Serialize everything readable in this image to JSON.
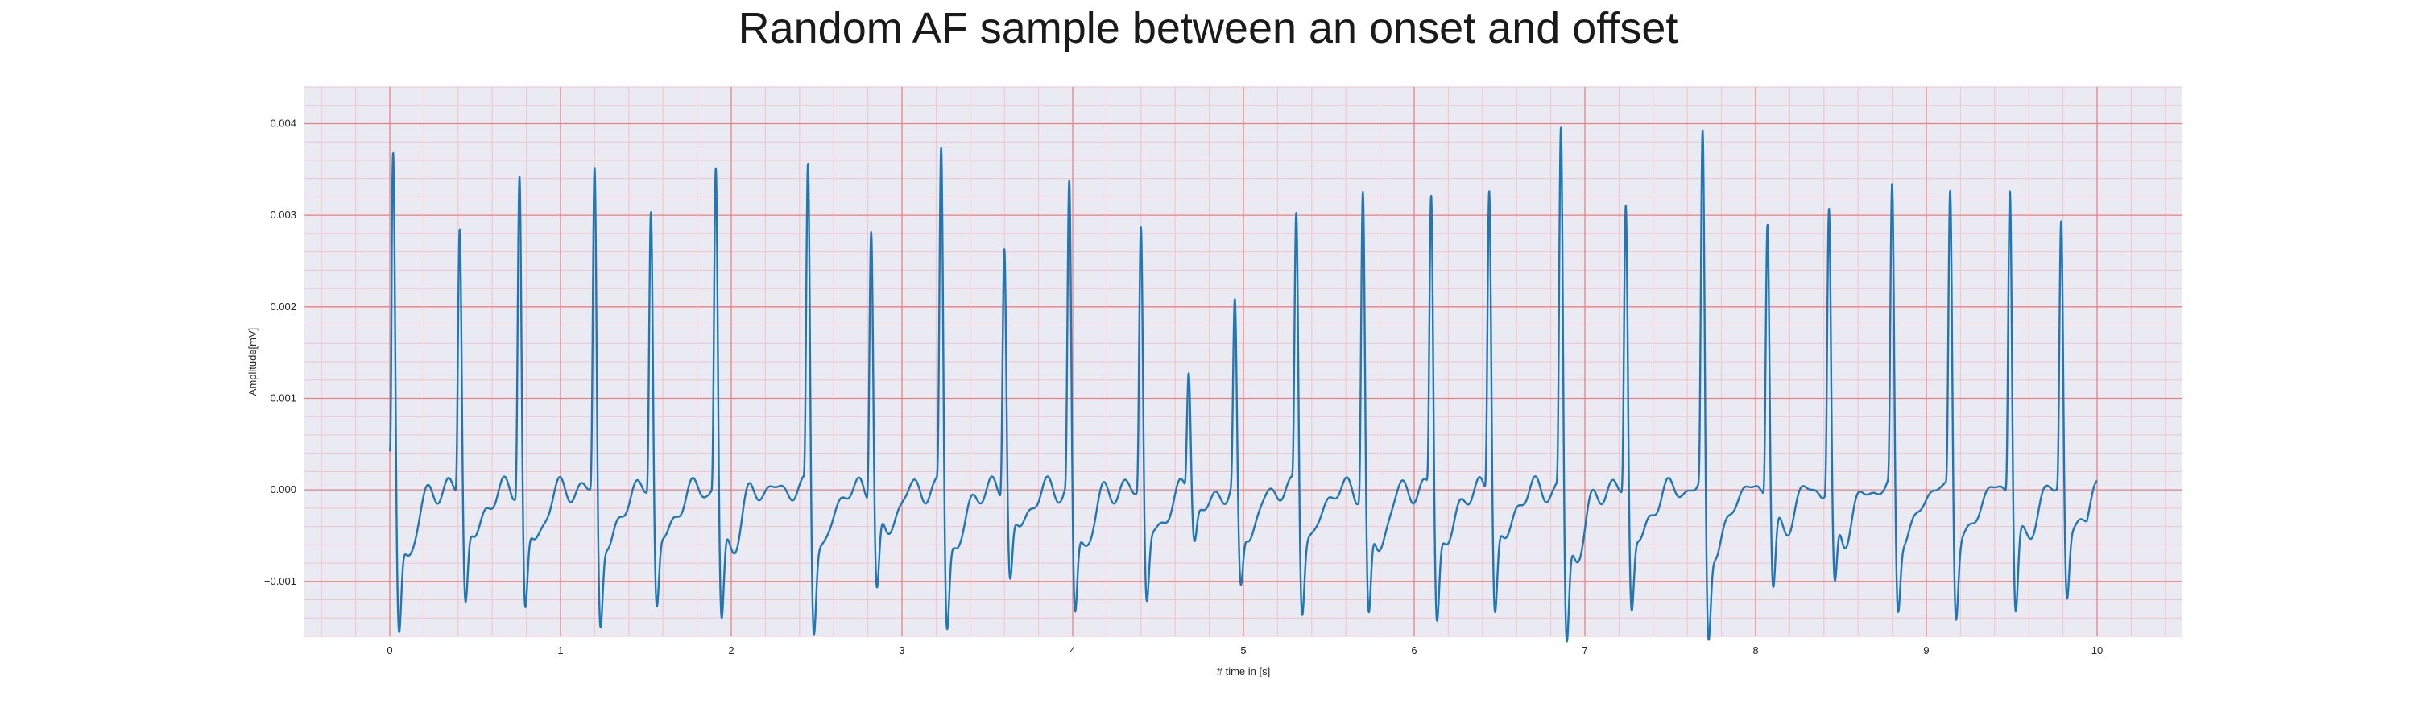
{
  "chart_data": {
    "type": "line",
    "title": "Random AF sample between an onset and offset",
    "xlabel": "# time in [s]",
    "ylabel": "Amplitude[mV]",
    "xlim": [
      -0.5,
      10.5
    ],
    "ylim": [
      -0.0016,
      0.0044
    ],
    "x_ticks": [
      0,
      1,
      2,
      3,
      4,
      5,
      6,
      7,
      8,
      9,
      10
    ],
    "x_tick_labels": [
      "0",
      "1",
      "2",
      "3",
      "4",
      "5",
      "6",
      "7",
      "8",
      "9",
      "10"
    ],
    "y_ticks": [
      -0.001,
      0.0,
      0.001,
      0.002,
      0.003,
      0.004
    ],
    "y_tick_labels": [
      "−0.001",
      "0.000",
      "0.001",
      "0.002",
      "0.003",
      "0.004"
    ],
    "x_minor_step": 0.2,
    "y_minor_step": 0.0002,
    "grid": true,
    "colors": {
      "background": "#eaeaf2",
      "major_grid": "#f08080",
      "minor_grid": "#f4c2cc",
      "line": "#1f77b4"
    },
    "series": [
      {
        "start": [
          0.0,
          0.00042
        ],
        "beats": [
          {
            "t": 0.02,
            "peak": 0.0038,
            "trough": -0.00125
          },
          {
            "t": 0.41,
            "peak": 0.0031,
            "trough": -0.00095
          },
          {
            "t": 0.76,
            "peak": 0.00367,
            "trough": -0.00105
          },
          {
            "t": 1.2,
            "peak": 0.00373,
            "trough": -0.00115
          },
          {
            "t": 1.53,
            "peak": 0.00325,
            "trough": -0.00098
          },
          {
            "t": 1.91,
            "peak": 0.00373,
            "trough": -0.00115
          },
          {
            "t": 2.45,
            "peak": 0.00373,
            "trough": -0.00115
          },
          {
            "t": 2.82,
            "peak": 0.00312,
            "trough": -0.00088
          },
          {
            "t": 3.23,
            "peak": 0.0039,
            "trough": -0.00115
          },
          {
            "t": 3.6,
            "peak": 0.00288,
            "trough": -0.00078
          },
          {
            "t": 3.98,
            "peak": 0.0035,
            "trough": -0.00108
          },
          {
            "t": 4.4,
            "peak": 0.00307,
            "trough": -0.00093
          },
          {
            "t": 4.68,
            "peak": 0.0014,
            "trough": -0.0004
          },
          {
            "t": 4.95,
            "peak": 0.0021,
            "trough": -0.00085
          },
          {
            "t": 5.31,
            "peak": 0.00318,
            "trough": -0.00098
          },
          {
            "t": 5.7,
            "peak": 0.0035,
            "trough": -0.00115
          },
          {
            "t": 6.1,
            "peak": 0.00343,
            "trough": -0.00108
          },
          {
            "t": 6.44,
            "peak": 0.00355,
            "trough": -0.00102
          },
          {
            "t": 6.86,
            "peak": 0.00415,
            "trough": -0.00132
          },
          {
            "t": 7.24,
            "peak": 0.00333,
            "trough": -0.00102
          },
          {
            "t": 7.69,
            "peak": 0.00408,
            "trough": -0.00125
          },
          {
            "t": 8.07,
            "peak": 0.00317,
            "trough": -0.00085
          },
          {
            "t": 8.43,
            "peak": 0.00322,
            "trough": -0.0009
          },
          {
            "t": 8.8,
            "peak": 0.00343,
            "trough": -0.00098
          },
          {
            "t": 9.14,
            "peak": 0.00345,
            "trough": -0.00102
          },
          {
            "t": 9.49,
            "peak": 0.00355,
            "trough": -0.00102
          },
          {
            "t": 9.79,
            "peak": 0.00312,
            "trough": -0.00088
          }
        ],
        "end": [
          10.0,
          0.0001
        ]
      }
    ]
  }
}
